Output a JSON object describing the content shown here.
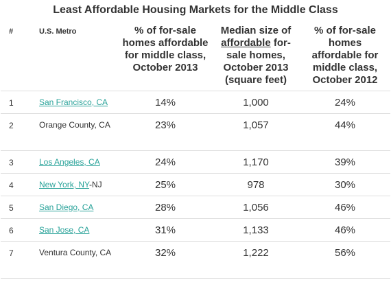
{
  "title": "Least Affordable Housing Markets for the Middle Class",
  "headers": {
    "num": "#",
    "metro": "U.S. Metro",
    "pct_2013": "% of for-sale homes affordable for middle class, October 2013",
    "size_pre": "Median size of ",
    "size_underlined": "affordable",
    "size_post": " for-sale homes, October 2013 (square feet)",
    "pct_2012": "% of for-sale homes affordable for middle class, October 2012"
  },
  "rows": [
    {
      "num": "1",
      "metro_link": "San Francisco, CA",
      "metro_text": "",
      "pct_2013": "14%",
      "size": "1,000",
      "pct_2012": "24%"
    },
    {
      "num": "2",
      "metro_link": "",
      "metro_text": "Orange County, CA",
      "pct_2013": "23%",
      "size": "1,057",
      "pct_2012": "44%"
    },
    {
      "num": "3",
      "metro_link": "Los Angeles, CA",
      "metro_text": "",
      "pct_2013": "24%",
      "size": "1,170",
      "pct_2012": "39%"
    },
    {
      "num": "4",
      "metro_link": "New York, NY",
      "metro_text": "-NJ",
      "pct_2013": "25%",
      "size": "978",
      "pct_2012": "30%"
    },
    {
      "num": "5",
      "metro_link": "San Diego, CA",
      "metro_text": "",
      "pct_2013": "28%",
      "size": "1,056",
      "pct_2012": "46%"
    },
    {
      "num": "6",
      "metro_link": "San Jose, CA",
      "metro_text": "",
      "pct_2013": "31%",
      "size": "1,133",
      "pct_2012": "46%"
    },
    {
      "num": "7",
      "metro_link": "",
      "metro_text": "Ventura County, CA",
      "pct_2013": "32%",
      "size": "1,222",
      "pct_2012": "56%"
    }
  ],
  "colors": {
    "link": "#2aa39a",
    "text": "#333333",
    "rule": "#dddddd"
  }
}
